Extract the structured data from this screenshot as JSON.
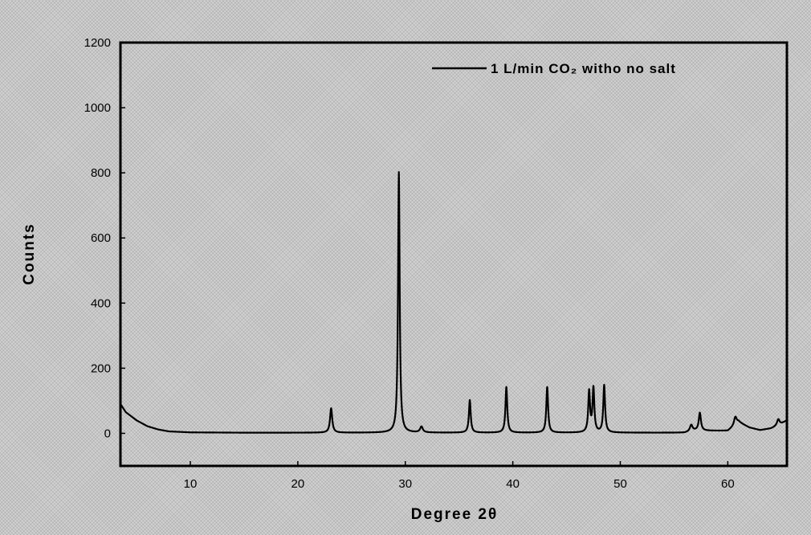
{
  "chart_data": {
    "type": "line",
    "title": "",
    "xlabel": "Degree 2θ",
    "ylabel": "Counts",
    "xlim": [
      3.5,
      65.5
    ],
    "ylim": [
      -100,
      1200
    ],
    "x_ticks": [
      10,
      20,
      30,
      40,
      50,
      60
    ],
    "y_ticks": [
      0,
      200,
      400,
      600,
      800,
      1000,
      1200
    ],
    "grid": false,
    "legend_position": "top-right",
    "series": [
      {
        "name": "1 L/min CO₂ witho no salt",
        "color": "#000000",
        "baseline": [
          [
            3.5,
            90
          ],
          [
            4,
            65
          ],
          [
            5,
            40
          ],
          [
            6,
            22
          ],
          [
            7,
            12
          ],
          [
            8,
            6
          ],
          [
            10,
            3
          ],
          [
            15,
            2
          ],
          [
            20,
            2
          ],
          [
            30,
            2
          ],
          [
            40,
            2
          ],
          [
            50,
            2
          ],
          [
            56,
            2
          ],
          [
            57,
            8
          ],
          [
            60,
            8
          ],
          [
            60.5,
            20
          ],
          [
            61,
            35
          ],
          [
            62,
            18
          ],
          [
            63,
            10
          ],
          [
            64,
            15
          ],
          [
            64.8,
            25
          ],
          [
            65.5,
            40
          ]
        ],
        "peaks": [
          {
            "x": 23.1,
            "y": 75,
            "width": 0.12
          },
          {
            "x": 29.4,
            "y": 800,
            "width": 0.09
          },
          {
            "x": 31.5,
            "y": 18,
            "width": 0.15
          },
          {
            "x": 36.0,
            "y": 100,
            "width": 0.1
          },
          {
            "x": 39.4,
            "y": 140,
            "width": 0.1
          },
          {
            "x": 43.2,
            "y": 140,
            "width": 0.1
          },
          {
            "x": 47.1,
            "y": 125,
            "width": 0.1
          },
          {
            "x": 47.5,
            "y": 135,
            "width": 0.1
          },
          {
            "x": 48.5,
            "y": 145,
            "width": 0.1
          },
          {
            "x": 56.6,
            "y": 20,
            "width": 0.15
          },
          {
            "x": 57.4,
            "y": 55,
            "width": 0.12
          },
          {
            "x": 60.7,
            "y": 25,
            "width": 0.15
          },
          {
            "x": 64.7,
            "y": 20,
            "width": 0.15
          }
        ]
      }
    ]
  }
}
